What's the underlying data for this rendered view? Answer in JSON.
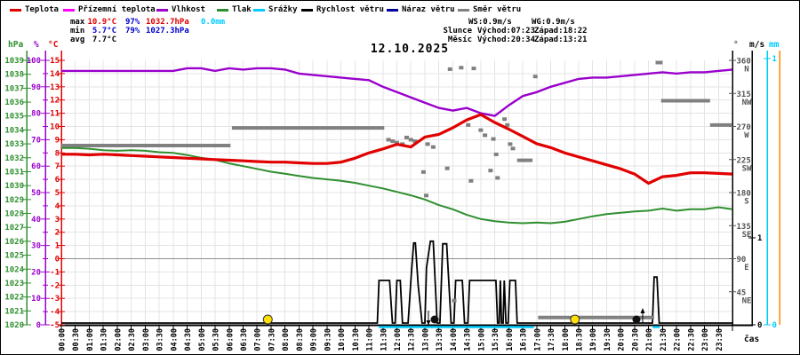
{
  "title": "12.10.2025",
  "legend": [
    {
      "label": "Teplota",
      "color": "#e10000",
      "x": 10
    },
    {
      "label": "Přízemní teplota",
      "color": "#ff00ff",
      "x": 70
    },
    {
      "label": "Vlhkost",
      "color": "#9900cc",
      "x": 175
    },
    {
      "label": "Tlak",
      "color": "#2f8f2f",
      "x": 243
    },
    {
      "label": "Srážky",
      "color": "#00ccff",
      "x": 284
    },
    {
      "label": "Rychlost větru",
      "color": "#000000",
      "x": 338
    },
    {
      "label": "Náraz větru",
      "color": "#000099",
      "x": 434
    },
    {
      "label": "Směr větru",
      "color": "#808080",
      "x": 514
    }
  ],
  "summary": {
    "rows": [
      {
        "label": "max",
        "values": [
          {
            "text": "10.9°C",
            "color": "#e10000"
          },
          {
            "text": "97%",
            "color": "#0000cc"
          },
          {
            "text": "1032.7hPa",
            "color": "#e10000"
          },
          {
            "text": "0.0mm",
            "color": "#00ccff"
          }
        ]
      },
      {
        "label": "min",
        "values": [
          {
            "text": "5.7°C",
            "color": "#0000cc"
          },
          {
            "text": "79%",
            "color": "#0000cc"
          },
          {
            "text": "1027.3hPa",
            "color": "#0000cc"
          }
        ]
      },
      {
        "label": "avg",
        "values": [
          {
            "text": "7.7°C",
            "color": "#000000"
          }
        ]
      }
    ]
  },
  "wind_summary": {
    "ws": "WS:0.9m/s",
    "wg": "WG:0.9m/s"
  },
  "astro": [
    {
      "label": "Slunce",
      "rise": "Východ:07:23",
      "set": "Západ:18:22"
    },
    {
      "label": "Měsíc",
      "rise": "Východ:20:34",
      "set": "Západ:13:21"
    }
  ],
  "chart_data": {
    "type": "line",
    "x_step_h": 0.5,
    "x_tick_labels": [
      "00:00",
      "00:30",
      "01:00",
      "01:30",
      "02:00",
      "02:30",
      "03:00",
      "03:30",
      "04:00",
      "04:30",
      "05:00",
      "05:30",
      "06:00",
      "06:30",
      "07:00",
      "07:30",
      "08:00",
      "08:30",
      "09:00",
      "09:30",
      "10:00",
      "10:30",
      "11:00",
      "11:30",
      "12:00",
      "12:30",
      "13:00",
      "13:30",
      "14:00",
      "14:30",
      "15:00",
      "15:30",
      "16:00",
      "16:30",
      "17:00",
      "17:30",
      "18:00",
      "18:30",
      "19:00",
      "19:30",
      "20:00",
      "20:30",
      "21:00",
      "21:30",
      "22:00",
      "22:30",
      "23:00",
      "23:30"
    ],
    "series": {
      "temperature_c": [
        7.9,
        7.9,
        7.85,
        7.9,
        7.85,
        7.8,
        7.75,
        7.7,
        7.65,
        7.6,
        7.55,
        7.5,
        7.45,
        7.4,
        7.35,
        7.3,
        7.3,
        7.25,
        7.2,
        7.2,
        7.3,
        7.6,
        8.0,
        8.3,
        8.65,
        8.45,
        9.2,
        9.4,
        9.9,
        10.5,
        10.9,
        10.3,
        9.8,
        9.25,
        8.7,
        8.4,
        8.0,
        7.7,
        7.4,
        7.1,
        6.8,
        6.4,
        5.7,
        6.2,
        6.3,
        6.5,
        6.5,
        6.45,
        6.4
      ],
      "humidity_pct": [
        96,
        96,
        96,
        96,
        96,
        96,
        96,
        96,
        96,
        97,
        97,
        96,
        97,
        96.5,
        97,
        97,
        96.5,
        95,
        94.5,
        94,
        93.5,
        93,
        92.5,
        90,
        88,
        86,
        84,
        82,
        81,
        82,
        80,
        79,
        83,
        86.5,
        88,
        90,
        91.5,
        93,
        93.5,
        93.5,
        94,
        94.5,
        95,
        95.5,
        95,
        95.5,
        95.5,
        96,
        96.5
      ],
      "pressure_hpa": [
        1032.7,
        1032.7,
        1032.65,
        1032.55,
        1032.5,
        1032.55,
        1032.5,
        1032.4,
        1032.35,
        1032.2,
        1032.0,
        1031.85,
        1031.6,
        1031.4,
        1031.2,
        1031.0,
        1030.85,
        1030.7,
        1030.55,
        1030.45,
        1030.35,
        1030.2,
        1030.0,
        1029.8,
        1029.55,
        1029.3,
        1029.0,
        1028.6,
        1028.3,
        1027.9,
        1027.6,
        1027.45,
        1027.35,
        1027.3,
        1027.35,
        1027.3,
        1027.4,
        1027.6,
        1027.8,
        1027.95,
        1028.05,
        1028.15,
        1028.2,
        1028.35,
        1028.2,
        1028.3,
        1028.3,
        1028.45,
        1028.3
      ]
    },
    "wind_speed_ms": [
      [
        0,
        0
      ],
      [
        11.3,
        0
      ],
      [
        11.36,
        0.5
      ],
      [
        11.74,
        0.5
      ],
      [
        11.84,
        0
      ],
      [
        11.94,
        0
      ],
      [
        12.0,
        0.5
      ],
      [
        12.12,
        0.5
      ],
      [
        12.2,
        0
      ],
      [
        12.4,
        0
      ],
      [
        12.52,
        0.6
      ],
      [
        12.6,
        0.94
      ],
      [
        12.66,
        0.94
      ],
      [
        12.76,
        0.45
      ],
      [
        12.9,
        0
      ],
      [
        13.0,
        0
      ],
      [
        13.06,
        0.65
      ],
      [
        13.2,
        0.96
      ],
      [
        13.3,
        0.96
      ],
      [
        13.44,
        0
      ],
      [
        13.54,
        0
      ],
      [
        13.64,
        0.93
      ],
      [
        13.78,
        0.93
      ],
      [
        13.94,
        0
      ],
      [
        14.04,
        0
      ],
      [
        14.1,
        0.5
      ],
      [
        14.34,
        0.5
      ],
      [
        14.42,
        0
      ],
      [
        14.54,
        0
      ],
      [
        14.6,
        0.5
      ],
      [
        15.54,
        0.5
      ],
      [
        15.6,
        0
      ],
      [
        15.66,
        0
      ],
      [
        15.7,
        0.5
      ],
      [
        15.74,
        0
      ],
      [
        15.8,
        0
      ],
      [
        15.84,
        0.5
      ],
      [
        15.9,
        0
      ],
      [
        15.98,
        0
      ],
      [
        16.04,
        0.5
      ],
      [
        16.24,
        0.5
      ],
      [
        16.3,
        0
      ],
      [
        21.14,
        0
      ],
      [
        21.2,
        0.54
      ],
      [
        21.3,
        0.54
      ],
      [
        21.38,
        0
      ],
      [
        24,
        0
      ]
    ],
    "wind_dir_segments": [
      {
        "from": 0,
        "to": 6.05,
        "deg": 244
      },
      {
        "from": 6.1,
        "to": 11.55,
        "deg": 268
      },
      {
        "from": 16.3,
        "to": 16.85,
        "deg": 224
      },
      {
        "from": 17.05,
        "to": 21.2,
        "deg": 10
      },
      {
        "from": 21.25,
        "to": 21.5,
        "deg": 357
      },
      {
        "from": 21.45,
        "to": 23.2,
        "deg": 305
      },
      {
        "from": 23.2,
        "to": 24,
        "deg": 272
      }
    ],
    "wind_dir_points": [
      [
        11.7,
        252
      ],
      [
        11.85,
        250
      ],
      [
        12.0,
        248
      ],
      [
        12.2,
        246
      ],
      [
        12.35,
        255
      ],
      [
        12.5,
        252
      ],
      [
        12.65,
        250
      ],
      [
        13.1,
        246
      ],
      [
        13.3,
        242
      ],
      [
        13.9,
        348
      ],
      [
        14.3,
        350
      ],
      [
        14.75,
        349
      ],
      [
        14.55,
        272
      ],
      [
        15.0,
        265
      ],
      [
        15.15,
        258
      ],
      [
        15.45,
        253
      ],
      [
        15.85,
        280
      ],
      [
        15.95,
        272
      ],
      [
        16.05,
        246
      ],
      [
        16.15,
        240
      ],
      [
        15.55,
        232
      ],
      [
        13.8,
        213
      ],
      [
        12.95,
        208
      ],
      [
        15.35,
        210
      ],
      [
        15.6,
        200
      ],
      [
        14.65,
        196
      ],
      [
        13.05,
        176
      ],
      [
        16.95,
        338
      ],
      [
        14.05,
        33
      ]
    ],
    "precip_zero_segments": [
      [
        11.35,
        16.9
      ],
      [
        21.15,
        21.4
      ]
    ],
    "markers": {
      "sun_h": [
        7.383,
        18.367
      ],
      "moon": [
        {
          "h": 13.35,
          "arrow": "down"
        },
        {
          "h": 20.567,
          "arrow": "up"
        }
      ]
    },
    "colors": {
      "temperature": "#e10000",
      "ground_temp": "#ff00ff",
      "humidity": "#9900cc",
      "pressure": "#2f8f2f",
      "precip": "#00ccff",
      "wind_speed": "#000000",
      "wind_gust": "#000099",
      "wind_dir": "#808080",
      "extra_axis": "#ff8800",
      "grid": "#e4e4e4",
      "grid_zero": "#8f8f8f",
      "dir_labels": "#555555",
      "sun": "#ffe000",
      "moon": "#111111"
    },
    "axes": {
      "pressure": {
        "label": "hPa",
        "min": 1020,
        "max": 1039,
        "step": 1
      },
      "humidity": {
        "label": "%",
        "min": 0,
        "max": 100,
        "step": 10
      },
      "temperature": {
        "label": "°C",
        "min": -5,
        "max": 15,
        "step": 1
      },
      "direction": {
        "label": "°",
        "ticks": [
          {
            "deg": 360,
            "c": "N"
          },
          {
            "deg": 315,
            "c": "NW"
          },
          {
            "deg": 270,
            "c": "W"
          },
          {
            "deg": 225,
            "c": "SW"
          },
          {
            "deg": 180,
            "c": "S"
          },
          {
            "deg": 135,
            "c": "SE"
          },
          {
            "deg": 90,
            "c": "E"
          },
          {
            "deg": 45,
            "c": "NE"
          }
        ]
      },
      "wind": {
        "label": "m/s",
        "ticks": [
          0,
          1
        ]
      },
      "precip": {
        "label": "mm",
        "ticks": [
          0,
          1
        ]
      },
      "x_label": "čas"
    }
  }
}
